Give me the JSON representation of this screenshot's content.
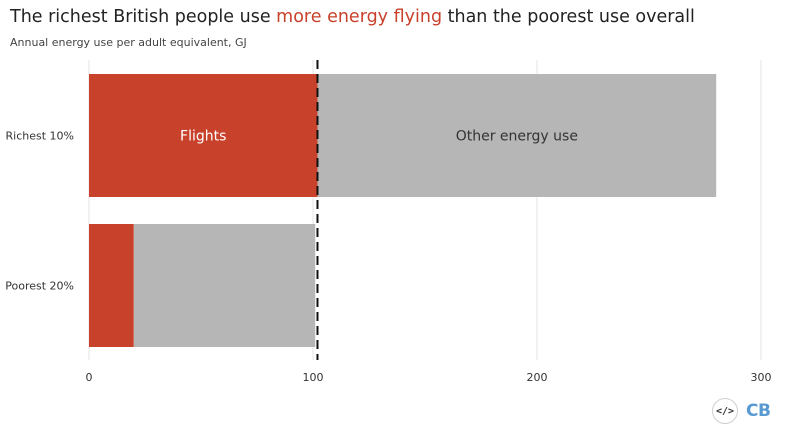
{
  "title": {
    "before": "The richest British people use ",
    "highlight": "more energy flying",
    "after": " than the poorest use overall"
  },
  "subtitle": "Annual energy use per adult equivalent, GJ",
  "colors": {
    "flights": "#c8412a",
    "other": "#b6b6b6",
    "highlight": "#c8412a"
  },
  "chart_data": {
    "type": "bar",
    "orientation": "horizontal",
    "stacked": true,
    "categories": [
      "Richest 10%",
      "Poorest 20%"
    ],
    "series": [
      {
        "name": "Flights",
        "values": [
          102,
          20
        ]
      },
      {
        "name": "Other energy use",
        "values": [
          178,
          81
        ]
      }
    ],
    "xlim": [
      0,
      300
    ],
    "xticks": [
      0,
      100,
      200,
      300
    ],
    "reference_line": {
      "x": 102,
      "style": "dashed"
    },
    "grid": "vertical",
    "legend": "in-bar labels"
  },
  "footer": {
    "embed_icon": "code-icon",
    "embed_text": "</>",
    "logo_text": "CB"
  }
}
